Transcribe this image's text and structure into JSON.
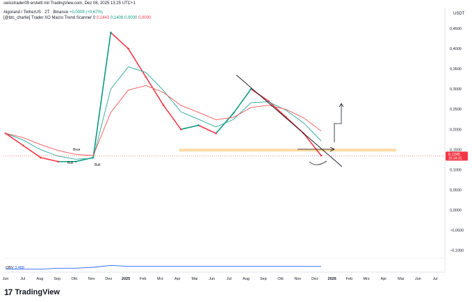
{
  "header": {
    "published": "swisstrader09 erstellt mit TradingView.com, Dez 08, 2025 13:25 UTC+1",
    "symbol": "Algorand / TetherUS · 2T · Binance",
    "change": "+0,0009 (+0,67%)",
    "indicator": "[@btc_charlie] Trader XO Macro Trend Scanner",
    "indicator_values": [
      "0",
      "0,1443",
      "0,1409",
      "0,0000",
      "0,0000"
    ]
  },
  "price_axis": {
    "currency": "USDT",
    "ticks": [
      "0,4500",
      "0,4000",
      "0,3500",
      "0,3000",
      "0,2500",
      "0,2000",
      "0,1500",
      "0,1000",
      "0,0500",
      "0,0000",
      "−0,0500",
      "−0,1000"
    ],
    "current_price": "0,1345",
    "countdown": "15:34:31"
  },
  "time_axis": {
    "ticks": [
      "Jun",
      "Jul",
      "Aug",
      "Sep",
      "Okt",
      "Nov",
      "Dez",
      "2025",
      "Feb",
      "Mrz",
      "Apr",
      "Mai",
      "Jun",
      "Jul",
      "Aug",
      "Sep",
      "Okt",
      "Nov",
      "Dez",
      "2026",
      "Feb",
      "Mrz",
      "Apr",
      "Mai",
      "Jun",
      "Jul"
    ]
  },
  "obv": {
    "label": "OBV",
    "value": "3,488"
  },
  "annotations": {
    "bear": "Bear",
    "bull": "Bull"
  },
  "footer": {
    "brand": "TradingView",
    "mark": "17"
  },
  "colors": {
    "up": "#089981",
    "down": "#f23645",
    "ema_fast": "#26a69a",
    "ema_slow": "#ef5350",
    "support_zone": "#fbd38d",
    "obv_line": "#2962ff",
    "price_line": "#f23645"
  },
  "chart_data": {
    "type": "line",
    "title": "Algorand / TetherUS · 2T · Binance",
    "xlabel": "",
    "ylabel": "",
    "ylim": [
      -0.13,
      0.5
    ],
    "x": [
      "2024-06",
      "2024-07",
      "2024-08",
      "2024-09",
      "2024-10",
      "2024-11",
      "2024-12",
      "2025-01",
      "2025-02",
      "2025-03",
      "2025-04",
      "2025-05",
      "2025-06",
      "2025-07",
      "2025-08",
      "2025-09",
      "2025-10",
      "2025-11",
      "2025-12"
    ],
    "series": [
      {
        "name": "Algorand / TetherUS",
        "values": [
          0.19,
          0.16,
          0.13,
          0.12,
          0.12,
          0.13,
          0.44,
          0.4,
          0.33,
          0.26,
          0.2,
          0.21,
          0.19,
          0.24,
          0.3,
          0.27,
          0.23,
          0.19,
          0.135
        ]
      }
    ],
    "support_zone": [
      0.145,
      0.152
    ],
    "obv": [
      3.2,
      3.2,
      3.2,
      3.3,
      3.3,
      3.4,
      3.6,
      3.5,
      3.5,
      3.5,
      3.5,
      3.5,
      3.5,
      3.5,
      3.5,
      3.5,
      3.5,
      3.5,
      3.488
    ]
  }
}
